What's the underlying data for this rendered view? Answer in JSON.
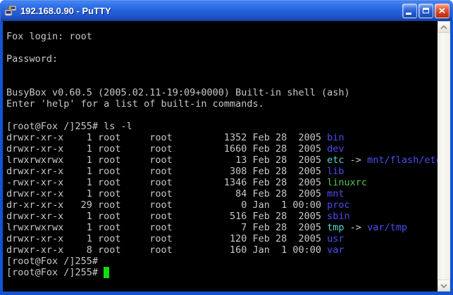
{
  "window": {
    "title": "192.168.0.90 - PuTTY",
    "icon": "putty-terminal-icon",
    "buttons": [
      {
        "name": "minimize-button",
        "glyph": "minimize-icon"
      },
      {
        "name": "maximize-button",
        "glyph": "maximize-icon"
      },
      {
        "name": "close-button",
        "glyph": "close-icon"
      }
    ]
  },
  "colors": {
    "fg": "#c8c8c8",
    "dir": "#4d4df0",
    "link": "#55d8cc",
    "exec": "#55c555",
    "cursor": "#11dd11",
    "frame": "#1254d1",
    "term-bg": "#000000"
  },
  "scrollbar": {
    "up_icon": "chevron-up-icon",
    "down_icon": "chevron-down-icon"
  },
  "terminal": {
    "lines": [
      [
        {
          "t": "Fox login: root"
        }
      ],
      [],
      [
        {
          "t": "Password:"
        }
      ],
      [],
      [],
      [
        {
          "t": "BusyBox v0.60.5 (2005.02.11-19:09+0000) Built-in shell (ash)"
        }
      ],
      [
        {
          "t": "Enter 'help' for a list of built-in commands."
        }
      ],
      [],
      [
        {
          "t": "[root@Fox /]255# ls -l"
        }
      ],
      [
        {
          "t": "drwxr-xr-x    1 root     root         1352 Feb 28  2005 "
        },
        {
          "t": "bin",
          "c": "dir"
        }
      ],
      [
        {
          "t": "drwxr-xr-x    1 root     root         1660 Feb 28  2005 "
        },
        {
          "t": "dev",
          "c": "dir"
        }
      ],
      [
        {
          "t": "lrwxrwxrwx    1 root     root           13 Feb 28  2005 "
        },
        {
          "t": "etc",
          "c": "link"
        },
        {
          "t": " -> "
        },
        {
          "t": "mnt/flash/etc",
          "c": "dir"
        }
      ],
      [
        {
          "t": "drwxr-xr-x    1 root     root          308 Feb 28  2005 "
        },
        {
          "t": "lib",
          "c": "dir"
        }
      ],
      [
        {
          "t": "-rwxr-xr-x    1 root     root         1346 Feb 28  2005 "
        },
        {
          "t": "linuxrc",
          "c": "exec"
        }
      ],
      [
        {
          "t": "drwxr-xr-x    1 root     root           84 Feb 28  2005 "
        },
        {
          "t": "mnt",
          "c": "dir"
        }
      ],
      [
        {
          "t": "dr-xr-xr-x   29 root     root            0 Jan  1 00:00 "
        },
        {
          "t": "proc",
          "c": "dir"
        }
      ],
      [
        {
          "t": "drwxr-xr-x    1 root     root          516 Feb 28  2005 "
        },
        {
          "t": "sbin",
          "c": "dir"
        }
      ],
      [
        {
          "t": "lrwxrwxrwx    1 root     root            7 Feb 28  2005 "
        },
        {
          "t": "tmp",
          "c": "link"
        },
        {
          "t": " -> "
        },
        {
          "t": "var/tmp",
          "c": "dir"
        }
      ],
      [
        {
          "t": "drwxr-xr-x    1 root     root          120 Feb 28  2005 "
        },
        {
          "t": "usr",
          "c": "dir"
        }
      ],
      [
        {
          "t": "drwxr-xr-x    8 root     root          160 Jan  1 00:00 "
        },
        {
          "t": "var",
          "c": "dir"
        }
      ],
      [
        {
          "t": "[root@Fox /]255#"
        }
      ],
      [
        {
          "t": "[root@Fox /]255# "
        },
        {
          "t": " ",
          "c": "cursor"
        }
      ]
    ]
  }
}
